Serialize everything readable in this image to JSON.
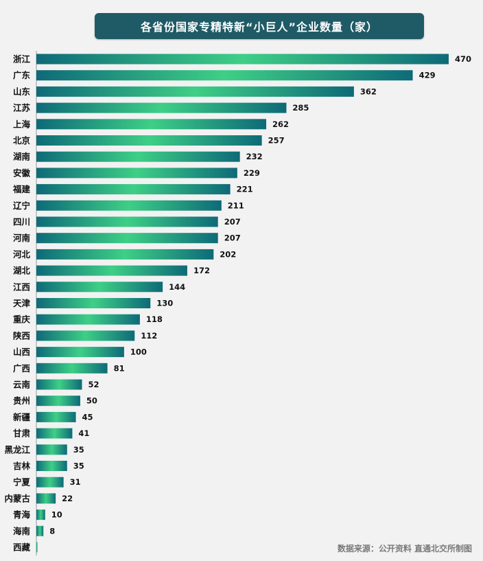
{
  "chart_data": {
    "type": "bar",
    "orientation": "horizontal",
    "title": "各省份国家专精特新“小巨人”企业数量（家）",
    "categories": [
      "浙江",
      "广东",
      "山东",
      "江苏",
      "上海",
      "北京",
      "湖南",
      "安徽",
      "福建",
      "辽宁",
      "四川",
      "河南",
      "河北",
      "湖北",
      "江西",
      "天津",
      "重庆",
      "陕西",
      "山西",
      "广西",
      "云南",
      "贵州",
      "新疆",
      "甘肃",
      "黑龙江",
      "吉林",
      "宁夏",
      "内蒙古",
      "青海",
      "海南",
      "西藏"
    ],
    "values": [
      470,
      429,
      362,
      285,
      262,
      257,
      232,
      229,
      221,
      211,
      207,
      207,
      202,
      172,
      144,
      130,
      118,
      112,
      100,
      81,
      52,
      50,
      45,
      41,
      35,
      35,
      31,
      22,
      10,
      8,
      1
    ],
    "value_labels": [
      "470",
      "429",
      "362",
      "285",
      "262",
      "257",
      "232",
      "229",
      "221",
      "211",
      "207",
      "207",
      "202",
      "172",
      "144",
      "130",
      "118",
      "112",
      "100",
      "81",
      "52",
      "50",
      "45",
      "41",
      "35",
      "35",
      "31",
      "22",
      "10",
      "8",
      ""
    ],
    "xlabel": "",
    "ylabel": "",
    "xlim": [
      0,
      470
    ],
    "grid": false,
    "legend": "none",
    "colors": {
      "bar_edge": "#0e6a78",
      "bar_center": "#3ecf86",
      "title_bg": "#1f5b66",
      "background": "#f2f2f2"
    }
  },
  "source_text": "数据来源：公开资料  直通北交所制图"
}
